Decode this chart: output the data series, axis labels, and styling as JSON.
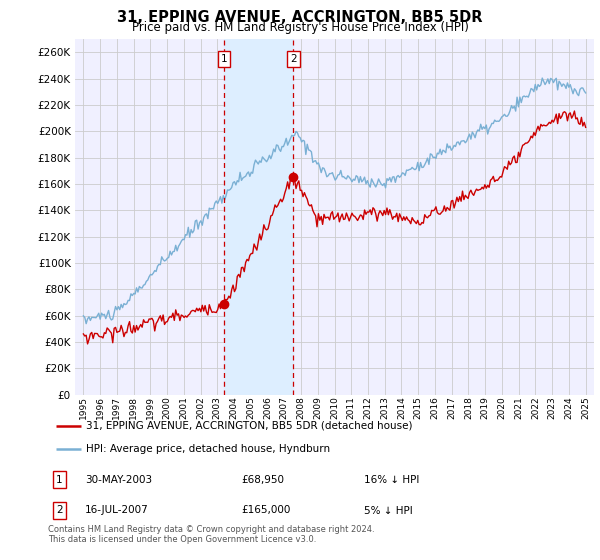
{
  "title": "31, EPPING AVENUE, ACCRINGTON, BB5 5DR",
  "subtitle": "Price paid vs. HM Land Registry's House Price Index (HPI)",
  "legend_line1": "31, EPPING AVENUE, ACCRINGTON, BB5 5DR (detached house)",
  "legend_line2": "HPI: Average price, detached house, Hyndburn",
  "sale1_date": "30-MAY-2003",
  "sale1_price": "£68,950",
  "sale1_hpi": "16% ↓ HPI",
  "sale1_year": 2003.41,
  "sale1_value": 68950,
  "sale2_date": "16-JUL-2007",
  "sale2_price": "£165,000",
  "sale2_hpi": "5% ↓ HPI",
  "sale2_year": 2007.54,
  "sale2_value": 165000,
  "footnote": "Contains HM Land Registry data © Crown copyright and database right 2024.\nThis data is licensed under the Open Government Licence v3.0.",
  "red_color": "#cc0000",
  "blue_color": "#7ab0d4",
  "shade_color": "#ddeeff",
  "grid_color": "#cccccc",
  "background_color": "#ffffff",
  "plot_bg_color": "#f0f0ff",
  "marker_box_color": "#cc0000",
  "ylim_max": 270000,
  "xlim_min": 1994.5,
  "xlim_max": 2025.5
}
